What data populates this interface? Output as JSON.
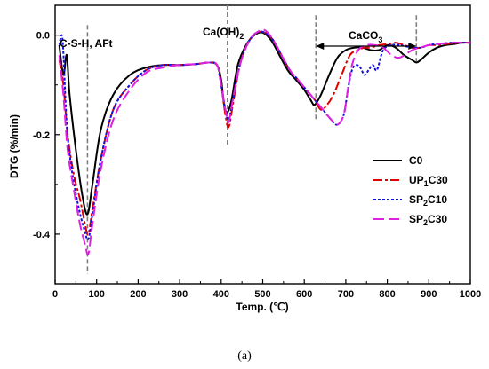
{
  "chart_data": {
    "type": "line",
    "xlabel": "Temp. (℃)",
    "ylabel": "DTG (%/min)",
    "xlim": [
      0,
      1000
    ],
    "ylim": [
      -0.5,
      0.06
    ],
    "xticks": [
      0,
      100,
      200,
      300,
      400,
      500,
      600,
      700,
      800,
      900,
      1000
    ],
    "yticks": [
      -0.4,
      -0.2,
      0.0
    ],
    "ytick_labels": [
      "-0.4",
      "-0.2",
      "0.0"
    ],
    "grid": false,
    "legend_position": "right",
    "caption": "(a)",
    "annotations": {
      "csh": "C-S-H, AFt",
      "caoh2": "Ca(OH)",
      "caoh2_sub": "2",
      "caco3": "CaCO",
      "caco3_sub": "3"
    },
    "reference_lines": [
      {
        "label": "csh",
        "x": 78
      },
      {
        "label": "caoh2",
        "x": 415
      },
      {
        "label": "caco3_start",
        "x": 628
      },
      {
        "label": "caco3_end",
        "x": 870
      }
    ],
    "caco3_arrow_range": [
      628,
      870
    ],
    "series": [
      {
        "name": "C0",
        "legend": {
          "main": "C0",
          "sub": "",
          "rest": ""
        },
        "color": "#000000",
        "dash": "",
        "x": [
          10,
          20,
          28,
          35,
          50,
          65,
          78,
          90,
          110,
          140,
          180,
          220,
          260,
          300,
          340,
          370,
          390,
          400,
          407,
          415,
          425,
          440,
          460,
          480,
          500,
          520,
          540,
          560,
          580,
          600,
          615,
          625,
          640,
          660,
          680,
          700,
          720,
          740,
          760,
          780,
          800,
          820,
          840,
          860,
          870,
          880,
          900,
          920,
          940,
          960,
          980,
          1000
        ],
        "y": [
          -0.02,
          -0.08,
          -0.04,
          -0.12,
          -0.23,
          -0.32,
          -0.36,
          -0.3,
          -0.19,
          -0.12,
          -0.08,
          -0.065,
          -0.06,
          -0.06,
          -0.058,
          -0.055,
          -0.06,
          -0.09,
          -0.14,
          -0.155,
          -0.13,
          -0.06,
          -0.02,
          0.0,
          0.005,
          -0.01,
          -0.04,
          -0.07,
          -0.09,
          -0.11,
          -0.13,
          -0.14,
          -0.12,
          -0.08,
          -0.045,
          -0.03,
          -0.025,
          -0.025,
          -0.03,
          -0.03,
          -0.02,
          -0.025,
          -0.04,
          -0.05,
          -0.055,
          -0.05,
          -0.035,
          -0.025,
          -0.02,
          -0.018,
          -0.015,
          -0.015
        ]
      },
      {
        "name": "UP1C30",
        "legend": {
          "main": "UP",
          "sub": "1",
          "rest": "C30"
        },
        "color": "#e00000",
        "dash": "10,3,3,3",
        "x": [
          10,
          20,
          30,
          45,
          60,
          72,
          80,
          90,
          110,
          140,
          180,
          220,
          260,
          300,
          340,
          370,
          390,
          400,
          410,
          418,
          428,
          445,
          465,
          485,
          505,
          525,
          545,
          565,
          585,
          605,
          625,
          640,
          655,
          670,
          690,
          710,
          730,
          745,
          760,
          780,
          800,
          820,
          840,
          860,
          880,
          900,
          920,
          940,
          960,
          980,
          1000
        ],
        "y": [
          -0.05,
          -0.1,
          -0.2,
          -0.28,
          -0.33,
          -0.38,
          -0.4,
          -0.35,
          -0.25,
          -0.15,
          -0.1,
          -0.07,
          -0.06,
          -0.06,
          -0.058,
          -0.055,
          -0.06,
          -0.1,
          -0.16,
          -0.185,
          -0.14,
          -0.06,
          -0.015,
          0.005,
          0.005,
          -0.01,
          -0.04,
          -0.07,
          -0.09,
          -0.11,
          -0.13,
          -0.15,
          -0.14,
          -0.12,
          -0.08,
          -0.04,
          -0.03,
          -0.025,
          -0.025,
          -0.02,
          -0.018,
          -0.015,
          -0.02,
          -0.025,
          -0.025,
          -0.02,
          -0.02,
          -0.018,
          -0.016,
          -0.015,
          -0.015
        ]
      },
      {
        "name": "SP2C10",
        "legend": {
          "main": "SP",
          "sub": "2",
          "rest": "C10"
        },
        "color": "#1010e0",
        "dash": "3,2",
        "x": [
          10,
          18,
          28,
          40,
          55,
          70,
          80,
          90,
          110,
          140,
          180,
          220,
          260,
          300,
          340,
          370,
          390,
          400,
          410,
          418,
          428,
          445,
          465,
          485,
          505,
          525,
          545,
          565,
          585,
          605,
          625,
          645,
          665,
          680,
          695,
          705,
          715,
          725,
          735,
          745,
          755,
          765,
          775,
          790,
          810,
          830,
          860,
          880,
          900,
          920,
          940,
          960,
          980,
          1000
        ],
        "y": [
          -0.02,
          -0.01,
          -0.18,
          -0.27,
          -0.34,
          -0.39,
          -0.41,
          -0.36,
          -0.25,
          -0.15,
          -0.1,
          -0.07,
          -0.06,
          -0.06,
          -0.058,
          -0.055,
          -0.06,
          -0.1,
          -0.15,
          -0.17,
          -0.13,
          -0.06,
          -0.015,
          0.005,
          0.005,
          -0.01,
          -0.04,
          -0.07,
          -0.09,
          -0.11,
          -0.13,
          -0.15,
          -0.17,
          -0.18,
          -0.16,
          -0.11,
          -0.07,
          -0.06,
          -0.065,
          -0.08,
          -0.07,
          -0.06,
          -0.07,
          -0.03,
          -0.02,
          -0.02,
          -0.025,
          -0.025,
          -0.02,
          -0.018,
          -0.016,
          -0.015,
          -0.015,
          -0.015
        ]
      },
      {
        "name": "SP2C30",
        "legend": {
          "main": "SP",
          "sub": "2",
          "rest": "C30"
        },
        "color": "#e020e0",
        "dash": "12,5",
        "x": [
          10,
          20,
          30,
          45,
          60,
          72,
          80,
          90,
          110,
          140,
          180,
          220,
          260,
          300,
          340,
          370,
          390,
          400,
          410,
          418,
          428,
          445,
          465,
          485,
          505,
          525,
          545,
          565,
          585,
          605,
          625,
          645,
          665,
          680,
          695,
          705,
          715,
          730,
          750,
          770,
          790,
          810,
          830,
          860,
          880,
          900,
          920,
          940,
          960,
          980,
          1000
        ],
        "y": [
          -0.04,
          -0.12,
          -0.23,
          -0.31,
          -0.38,
          -0.42,
          -0.44,
          -0.38,
          -0.27,
          -0.17,
          -0.11,
          -0.075,
          -0.065,
          -0.06,
          -0.058,
          -0.055,
          -0.06,
          -0.1,
          -0.15,
          -0.175,
          -0.13,
          -0.06,
          -0.015,
          0.005,
          0.01,
          -0.01,
          -0.04,
          -0.07,
          -0.09,
          -0.11,
          -0.13,
          -0.15,
          -0.17,
          -0.18,
          -0.16,
          -0.11,
          -0.06,
          -0.03,
          -0.02,
          -0.02,
          -0.025,
          -0.04,
          -0.045,
          -0.03,
          -0.025,
          -0.02,
          -0.018,
          -0.016,
          -0.015,
          -0.015,
          -0.015
        ]
      }
    ]
  }
}
